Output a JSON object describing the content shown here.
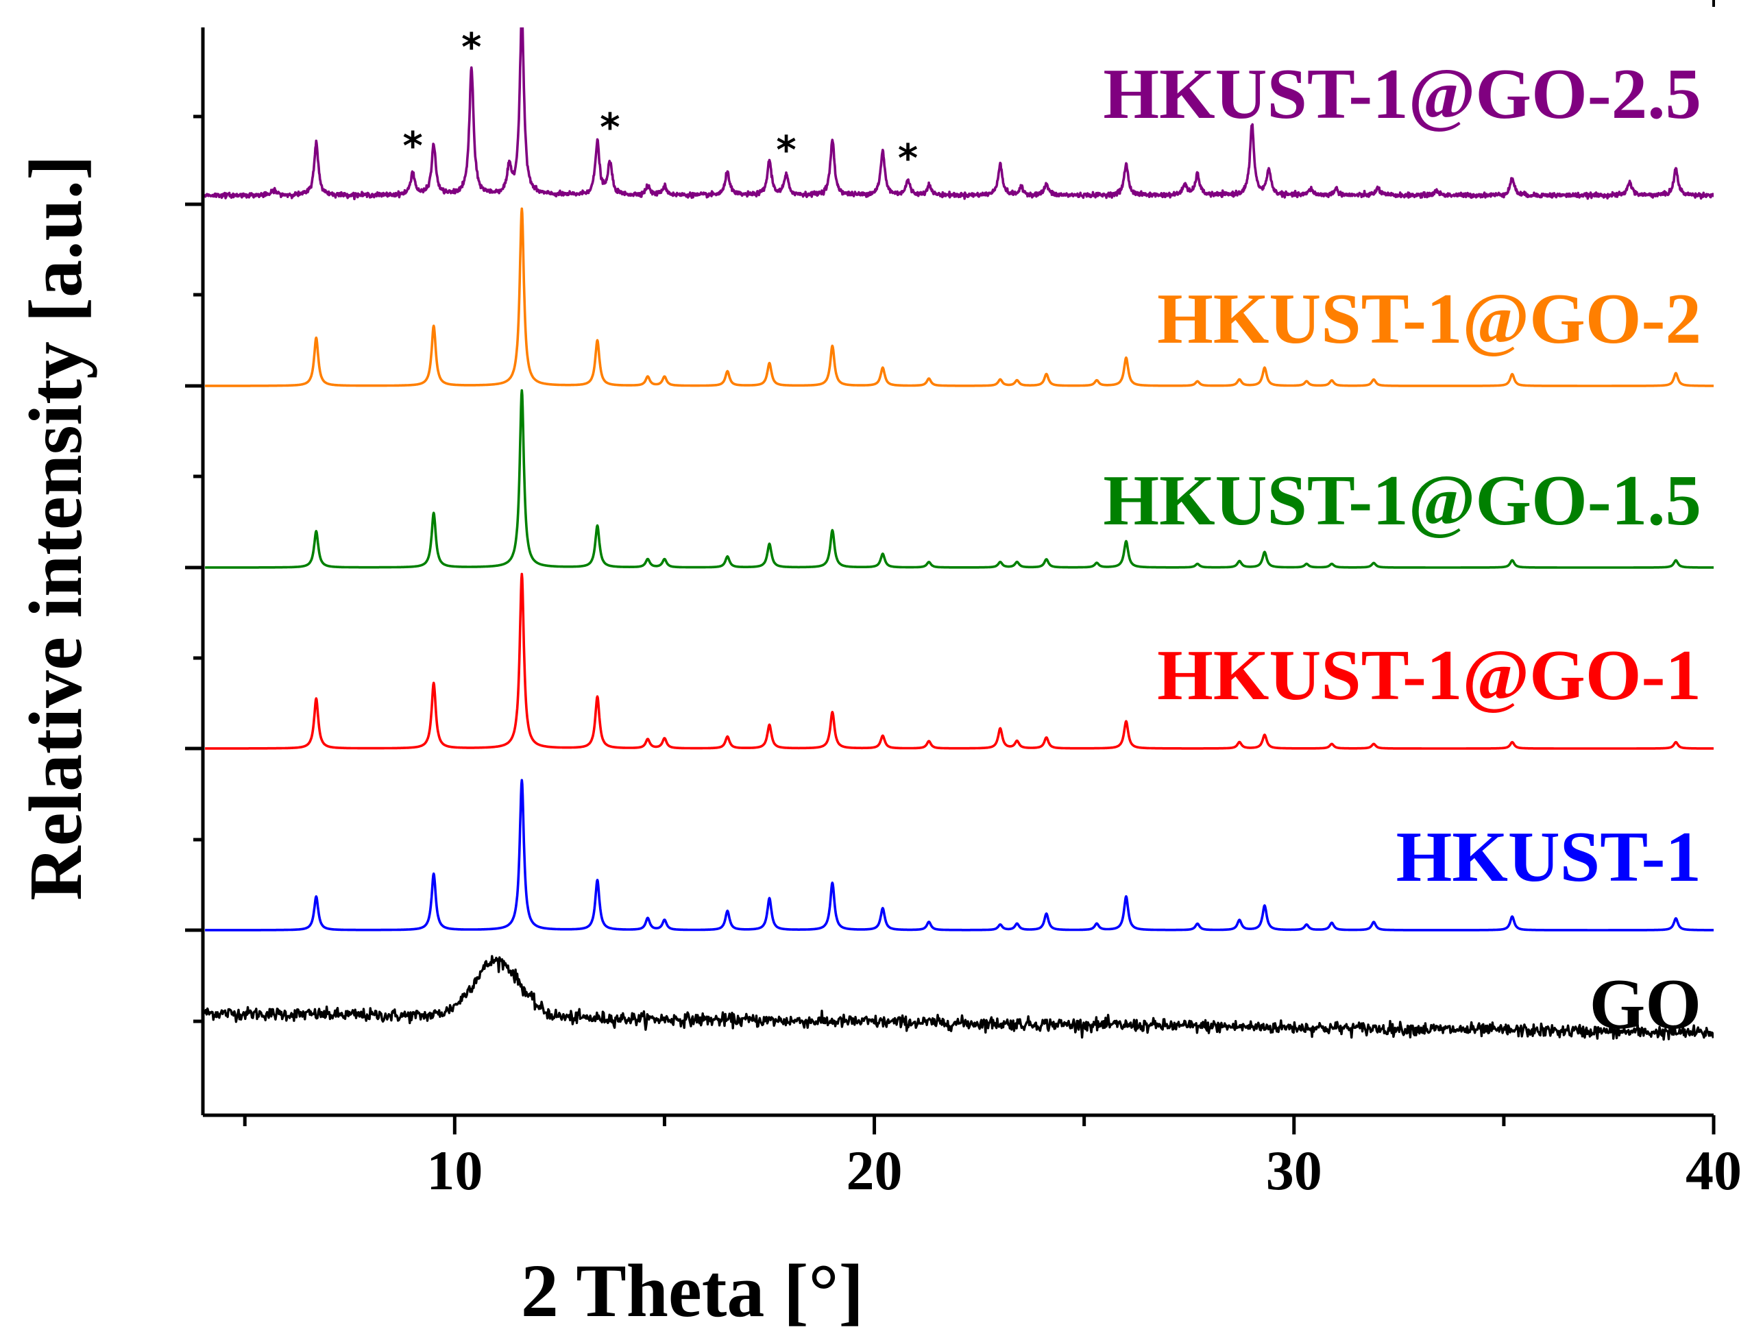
{
  "chart_data": {
    "type": "line",
    "title": "",
    "xlabel": "2 Theta [°]",
    "ylabel": "Relative intensity [a.u.]",
    "xlim": [
      4,
      40
    ],
    "xticks": [
      10,
      20,
      30,
      40
    ],
    "tick_labels": [
      "10",
      "20",
      "30",
      "40"
    ],
    "y_ticks": "none (stacked offsets, arbitrary units)",
    "grid": false,
    "series": [
      {
        "name": "GO",
        "label": "GO",
        "color": "#000000",
        "offset": 0,
        "baseline": 0.28,
        "noise": 0.035,
        "broad_peaks": [
          {
            "x": 11.0,
            "height": 0.62,
            "width": 0.55
          }
        ]
      },
      {
        "name": "HKUST-1",
        "label": "HKUST-1",
        "color": "#0000ff",
        "offset": 2,
        "peaks": [
          [
            6.7,
            0.37
          ],
          [
            9.5,
            0.62
          ],
          [
            11.6,
            1.65
          ],
          [
            13.4,
            0.55
          ],
          [
            14.6,
            0.13
          ],
          [
            15.0,
            0.11
          ],
          [
            16.5,
            0.21
          ],
          [
            17.5,
            0.35
          ],
          [
            19.0,
            0.52
          ],
          [
            20.2,
            0.24
          ],
          [
            21.3,
            0.09
          ],
          [
            23.0,
            0.06
          ],
          [
            23.4,
            0.07
          ],
          [
            24.1,
            0.18
          ],
          [
            25.3,
            0.07
          ],
          [
            26.0,
            0.37
          ],
          [
            27.7,
            0.07
          ],
          [
            28.7,
            0.11
          ],
          [
            29.3,
            0.27
          ],
          [
            30.3,
            0.06
          ],
          [
            30.9,
            0.08
          ],
          [
            31.9,
            0.09
          ],
          [
            35.2,
            0.15
          ],
          [
            39.1,
            0.13
          ]
        ]
      },
      {
        "name": "HKUST-1@GO-1",
        "label": "HKUST-1@GO-1",
        "color": "#ff0000",
        "offset": 4,
        "peaks": [
          [
            6.7,
            0.55
          ],
          [
            9.5,
            0.72
          ],
          [
            11.6,
            1.92
          ],
          [
            13.4,
            0.57
          ],
          [
            14.6,
            0.1
          ],
          [
            15.0,
            0.11
          ],
          [
            16.5,
            0.13
          ],
          [
            17.5,
            0.26
          ],
          [
            19.0,
            0.4
          ],
          [
            20.2,
            0.14
          ],
          [
            21.3,
            0.08
          ],
          [
            23.0,
            0.22
          ],
          [
            23.4,
            0.08
          ],
          [
            24.1,
            0.12
          ],
          [
            26.0,
            0.3
          ],
          [
            28.7,
            0.07
          ],
          [
            29.3,
            0.15
          ],
          [
            30.9,
            0.05
          ],
          [
            31.9,
            0.05
          ],
          [
            35.2,
            0.07
          ],
          [
            39.1,
            0.07
          ]
        ]
      },
      {
        "name": "HKUST-1@GO-1.5",
        "label": "HKUST-1@GO-1.5",
        "color": "#008000",
        "offset": 6,
        "peaks": [
          [
            6.7,
            0.4
          ],
          [
            9.5,
            0.6
          ],
          [
            11.6,
            1.95
          ],
          [
            13.4,
            0.46
          ],
          [
            14.6,
            0.09
          ],
          [
            15.0,
            0.09
          ],
          [
            16.5,
            0.12
          ],
          [
            17.5,
            0.26
          ],
          [
            19.0,
            0.41
          ],
          [
            20.2,
            0.15
          ],
          [
            21.3,
            0.06
          ],
          [
            23.0,
            0.06
          ],
          [
            23.4,
            0.06
          ],
          [
            24.1,
            0.09
          ],
          [
            25.3,
            0.05
          ],
          [
            26.0,
            0.29
          ],
          [
            27.7,
            0.04
          ],
          [
            28.7,
            0.07
          ],
          [
            29.3,
            0.17
          ],
          [
            30.3,
            0.04
          ],
          [
            30.9,
            0.04
          ],
          [
            31.9,
            0.05
          ],
          [
            35.2,
            0.08
          ],
          [
            39.1,
            0.08
          ]
        ]
      },
      {
        "name": "HKUST-1@GO-2",
        "label": "HKUST-1@GO-2",
        "color": "#ff7f00",
        "offset": 8,
        "peaks": [
          [
            6.7,
            0.53
          ],
          [
            9.5,
            0.66
          ],
          [
            11.6,
            1.95
          ],
          [
            13.4,
            0.5
          ],
          [
            14.6,
            0.1
          ],
          [
            15.0,
            0.1
          ],
          [
            16.5,
            0.16
          ],
          [
            17.5,
            0.25
          ],
          [
            19.0,
            0.44
          ],
          [
            20.2,
            0.2
          ],
          [
            21.3,
            0.08
          ],
          [
            23.0,
            0.07
          ],
          [
            23.4,
            0.06
          ],
          [
            24.1,
            0.13
          ],
          [
            25.3,
            0.06
          ],
          [
            26.0,
            0.31
          ],
          [
            27.7,
            0.05
          ],
          [
            28.7,
            0.07
          ],
          [
            29.3,
            0.2
          ],
          [
            30.3,
            0.05
          ],
          [
            30.9,
            0.06
          ],
          [
            31.9,
            0.07
          ],
          [
            35.2,
            0.13
          ],
          [
            39.1,
            0.14
          ]
        ]
      },
      {
        "name": "HKUST-1@GO-2.5",
        "label": "HKUST-1@GO-2.5",
        "color": "#800080",
        "offset": 10,
        "peaks": [
          [
            5.7,
            0.06
          ],
          [
            6.7,
            0.58
          ],
          [
            9.0,
            0.25
          ],
          [
            9.5,
            0.55
          ],
          [
            10.4,
            1.4
          ],
          [
            11.3,
            0.28
          ],
          [
            11.6,
            2.0
          ],
          [
            13.4,
            0.58
          ],
          [
            13.7,
            0.36
          ],
          [
            14.6,
            0.1
          ],
          [
            15.0,
            0.1
          ],
          [
            16.5,
            0.26
          ],
          [
            17.5,
            0.38
          ],
          [
            17.9,
            0.22
          ],
          [
            19.0,
            0.6
          ],
          [
            20.2,
            0.48
          ],
          [
            20.8,
            0.16
          ],
          [
            21.3,
            0.11
          ],
          [
            23.0,
            0.35
          ],
          [
            23.5,
            0.08
          ],
          [
            24.1,
            0.12
          ],
          [
            26.0,
            0.34
          ],
          [
            27.4,
            0.12
          ],
          [
            27.7,
            0.23
          ],
          [
            29.0,
            0.76
          ],
          [
            29.4,
            0.28
          ],
          [
            30.4,
            0.07
          ],
          [
            31.0,
            0.07
          ],
          [
            32.0,
            0.08
          ],
          [
            33.4,
            0.05
          ],
          [
            35.2,
            0.19
          ],
          [
            38.0,
            0.15
          ],
          [
            39.1,
            0.29
          ]
        ],
        "noise": 0.012
      }
    ],
    "annotations": [
      {
        "text": "*",
        "x": 9.0,
        "series": "HKUST-1@GO-2.5"
      },
      {
        "text": "*",
        "x": 10.4,
        "series": "HKUST-1@GO-2.5"
      },
      {
        "text": "*",
        "x": 13.7,
        "series": "HKUST-1@GO-2.5"
      },
      {
        "text": "*",
        "x": 17.9,
        "series": "HKUST-1@GO-2.5"
      },
      {
        "text": "*",
        "x": 20.8,
        "series": "HKUST-1@GO-2.5"
      }
    ]
  }
}
